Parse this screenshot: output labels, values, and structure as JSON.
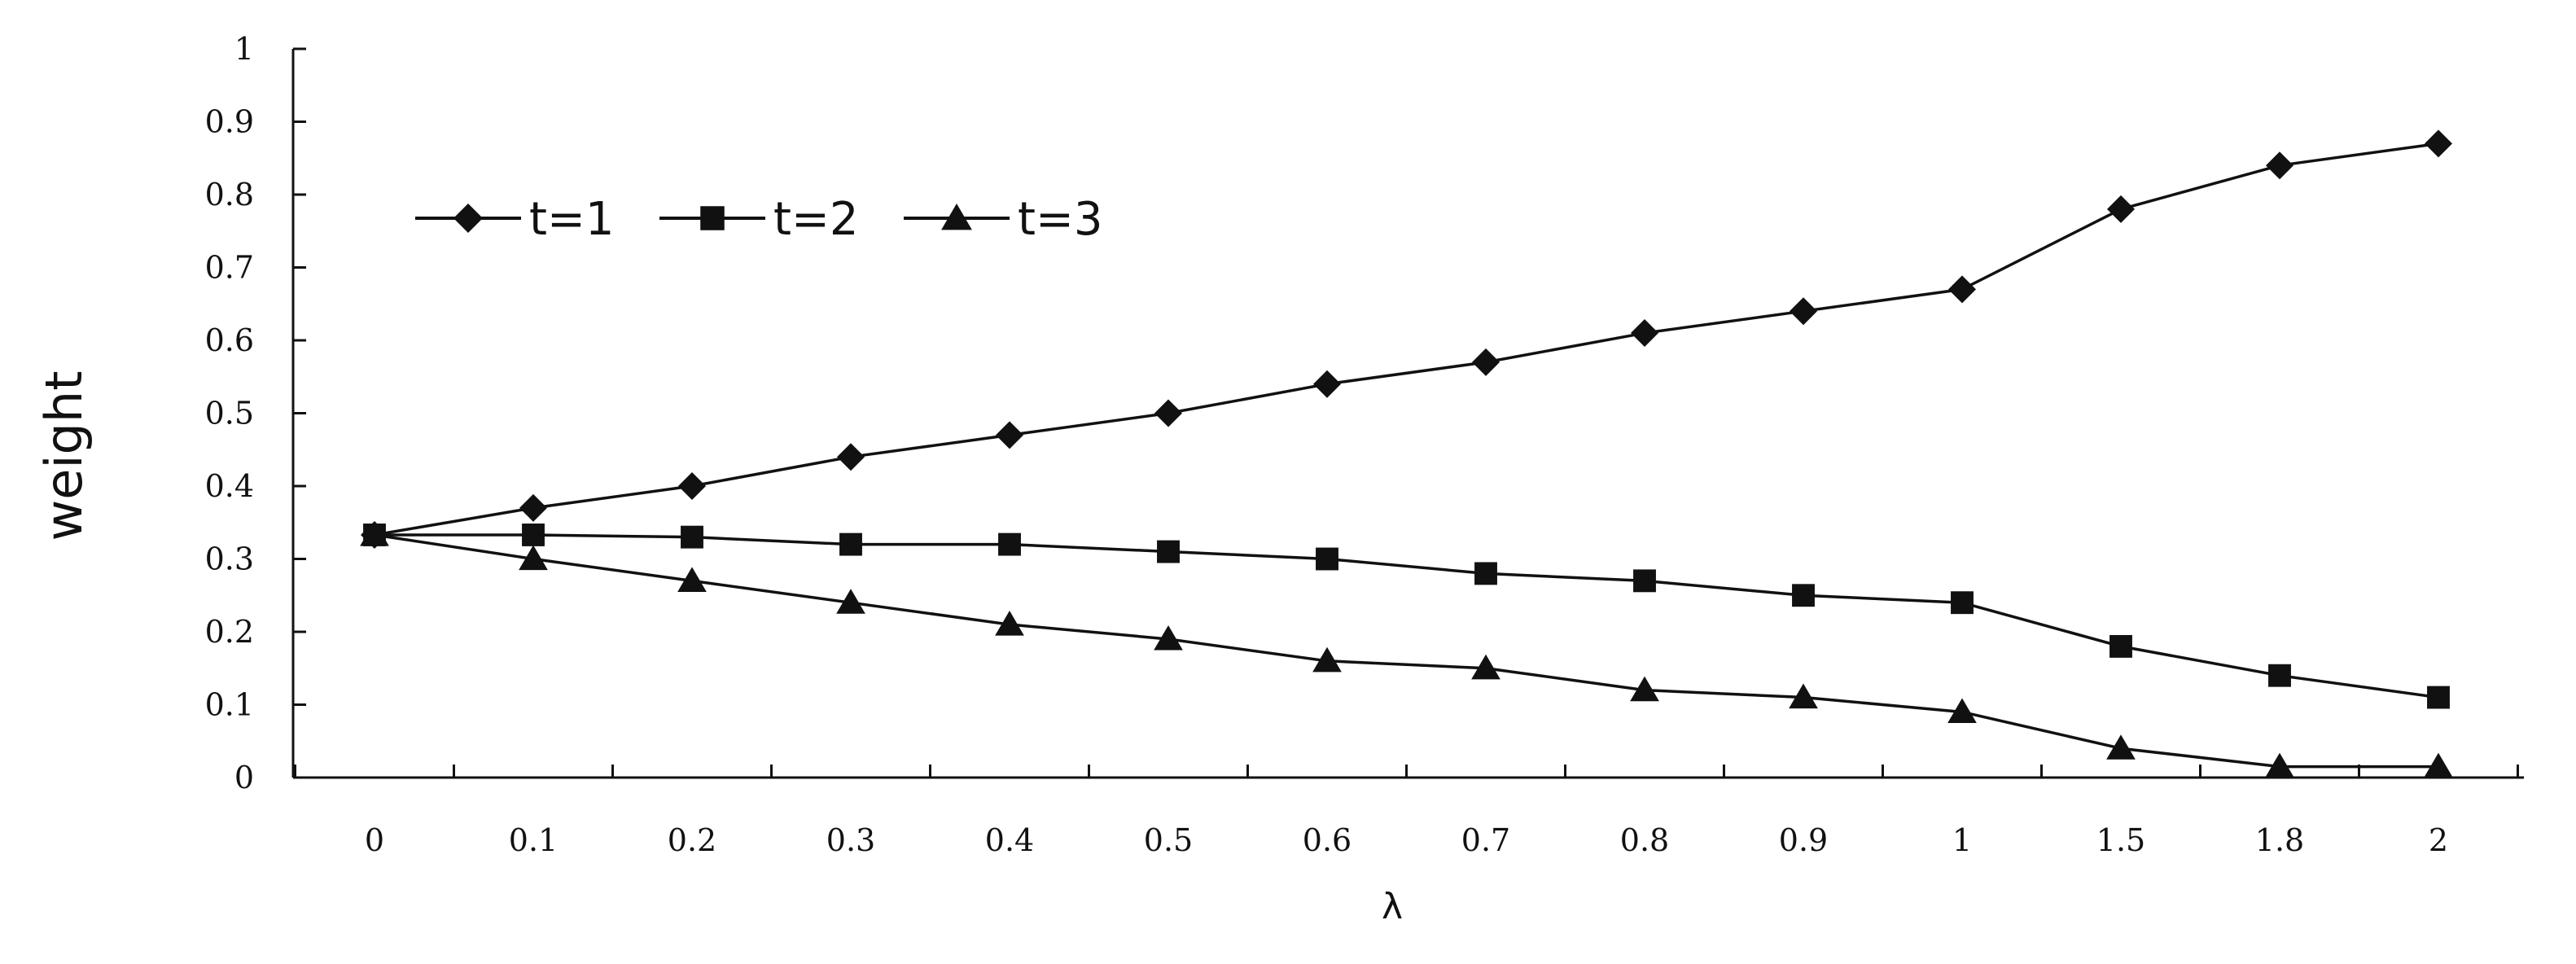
{
  "chart_data": {
    "type": "line",
    "title": "",
    "xlabel": "λ",
    "ylabel": "weight",
    "categories": [
      "0",
      "0.1",
      "0.2",
      "0.3",
      "0.4",
      "0.5",
      "0.6",
      "0.7",
      "0.8",
      "0.9",
      "1",
      "1.5",
      "1.8",
      "2"
    ],
    "yticks": [
      "0",
      "0.1",
      "0.2",
      "0.3",
      "0.4",
      "0.5",
      "0.6",
      "0.7",
      "0.8",
      "0.9",
      "1"
    ],
    "ylim": [
      0,
      1
    ],
    "grid": false,
    "legend_position": "top-left",
    "series": [
      {
        "name": "t=1",
        "marker": "diamond",
        "color": "#111111",
        "values": [
          0.333,
          0.37,
          0.4,
          0.44,
          0.47,
          0.5,
          0.54,
          0.57,
          0.61,
          0.64,
          0.67,
          0.78,
          0.84,
          0.87
        ]
      },
      {
        "name": "t=2",
        "marker": "square",
        "color": "#111111",
        "values": [
          0.333,
          0.333,
          0.33,
          0.32,
          0.32,
          0.31,
          0.3,
          0.28,
          0.27,
          0.25,
          0.24,
          0.18,
          0.14,
          0.11
        ]
      },
      {
        "name": "t=3",
        "marker": "triangle",
        "color": "#111111",
        "values": [
          0.333,
          0.3,
          0.27,
          0.24,
          0.21,
          0.19,
          0.16,
          0.15,
          0.12,
          0.11,
          0.09,
          0.04,
          0.015,
          0.015
        ]
      }
    ]
  }
}
